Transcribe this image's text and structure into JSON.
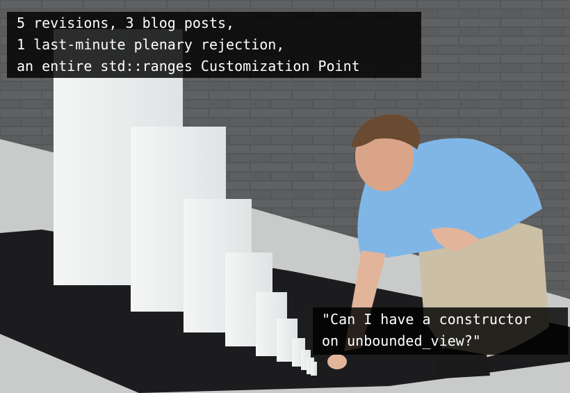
{
  "captions": {
    "top": [
      "5 revisions, 3 blog posts,",
      "1 last-minute plenary rejection,",
      "an entire std::ranges Customization Point"
    ],
    "bottom": [
      "\"Can I have a constructor",
      "on unbounded_view?\""
    ]
  }
}
